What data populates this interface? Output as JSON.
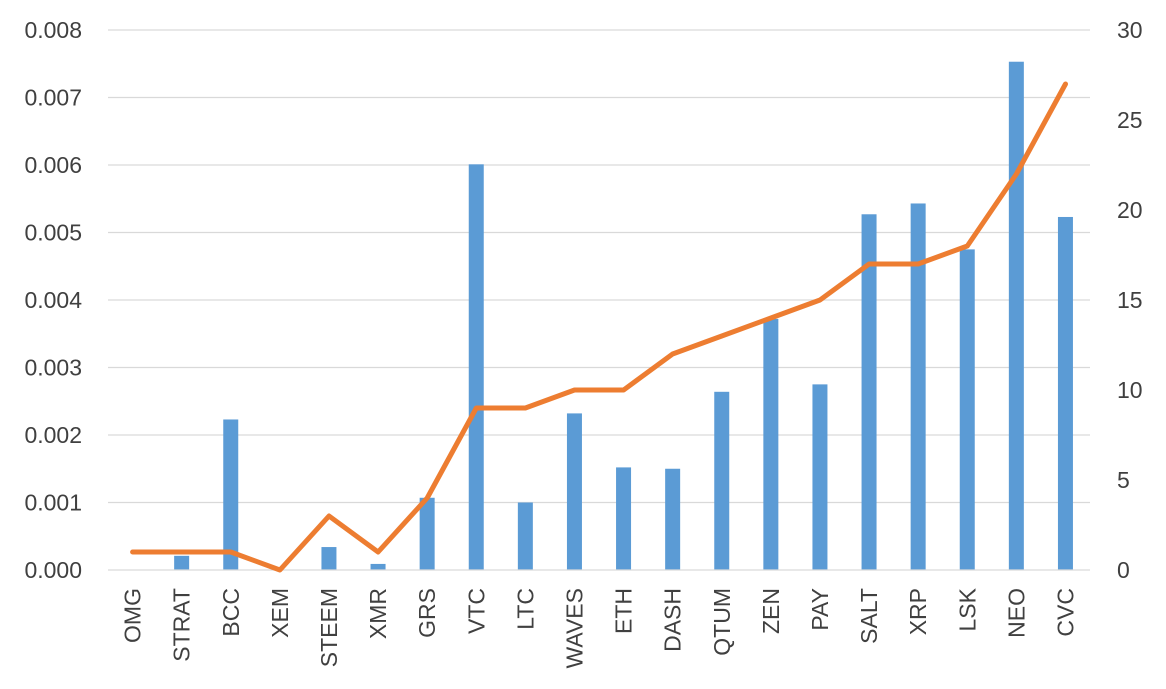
{
  "chart_data": {
    "type": "bar",
    "categories": [
      "OMG",
      "STRAT",
      "BCC",
      "XEM",
      "STEEM",
      "XMR",
      "GRS",
      "VTC",
      "LTC",
      "WAVES",
      "ETH",
      "DASH",
      "QTUM",
      "ZEN",
      "PAY",
      "SALT",
      "XRP",
      "LSK",
      "NEO",
      "CVC"
    ],
    "series": [
      {
        "type": "bar",
        "axis": "left",
        "color": "#5b9bd5",
        "values": [
          0,
          0.00021,
          0.00223,
          0,
          0.00034,
          9e-05,
          0.00107,
          0.00601,
          0.001,
          0.00232,
          0.00152,
          0.0015,
          0.00264,
          0.00372,
          0.00275,
          0.00527,
          0.00543,
          0.00475,
          0.00753,
          0.00523
        ]
      },
      {
        "type": "line",
        "axis": "right",
        "color": "#ed7d31",
        "values": [
          1,
          1,
          1,
          0,
          3,
          1,
          4,
          9,
          9,
          10,
          10,
          12,
          13,
          14,
          15,
          17,
          17,
          18,
          22,
          27
        ]
      }
    ],
    "left_axis": {
      "ylim": [
        0,
        0.008
      ],
      "ticks": [
        "0.000",
        "0.001",
        "0.002",
        "0.003",
        "0.004",
        "0.005",
        "0.006",
        "0.007",
        "0.008"
      ]
    },
    "right_axis": {
      "ylim": [
        0,
        30
      ],
      "ticks": [
        "0",
        "5",
        "10",
        "15",
        "20",
        "25",
        "30"
      ]
    },
    "grid": true,
    "title": "",
    "xlabel": "",
    "ylabel": ""
  }
}
